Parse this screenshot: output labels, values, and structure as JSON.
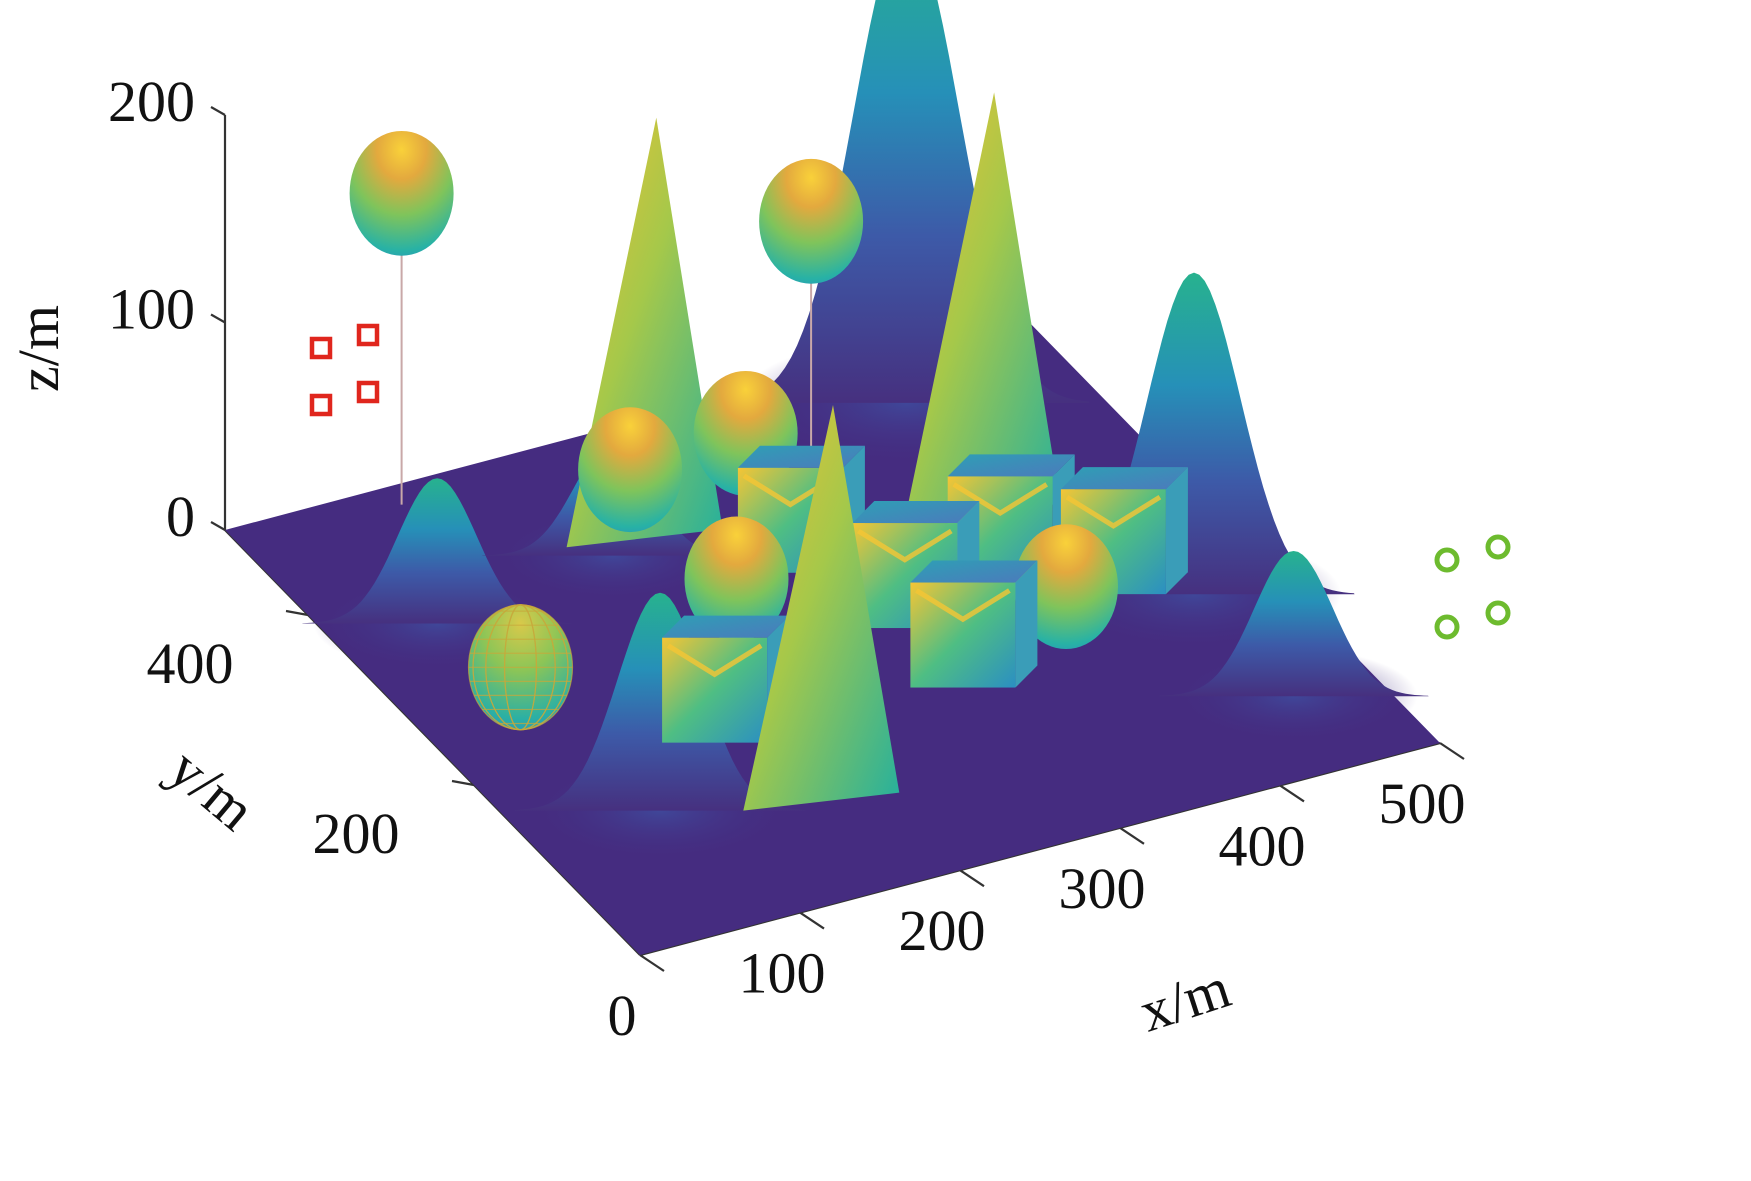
{
  "chart_data": {
    "type": "surface",
    "title": "",
    "xlabel": "x/m",
    "ylabel": "y/m",
    "zlabel": "z/m",
    "xlim": [
      0,
      500
    ],
    "ylim": [
      0,
      500
    ],
    "zlim": [
      0,
      200
    ],
    "x_ticks": [
      {
        "value": 0,
        "label": "0"
      },
      {
        "value": 100,
        "label": "100"
      },
      {
        "value": 200,
        "label": "200"
      },
      {
        "value": 300,
        "label": "300"
      },
      {
        "value": 400,
        "label": "400"
      },
      {
        "value": 500,
        "label": "500"
      }
    ],
    "y_ticks": [
      {
        "value": 200,
        "label": "200"
      },
      {
        "value": 400,
        "label": "400"
      }
    ],
    "z_ticks": [
      {
        "value": 0,
        "label": "0"
      },
      {
        "value": 100,
        "label": "100"
      },
      {
        "value": 200,
        "label": "200"
      }
    ],
    "grid": false,
    "colormap": "parula",
    "colors": {
      "ground": "#452C80",
      "low": "#3E3A8F",
      "mid": "#2AA99A",
      "high": "#F9C62E",
      "start_marker": "#E0261D",
      "goal_marker": "#6DBB2E"
    },
    "terrain_peaks": [
      {
        "x": 60,
        "y": 360,
        "height": 70
      },
      {
        "x": 180,
        "y": 380,
        "height": 55
      },
      {
        "x": 80,
        "y": 130,
        "height": 105
      },
      {
        "x": 400,
        "y": 450,
        "height": 230
      },
      {
        "x": 450,
        "y": 200,
        "height": 155
      },
      {
        "x": 450,
        "y": 80,
        "height": 70
      }
    ],
    "obstacles": {
      "spheres": [
        {
          "x": 100,
          "y": 480,
          "z": 150
        },
        {
          "x": 330,
          "y": 430,
          "z": 110
        },
        {
          "x": 165,
          "y": 330,
          "z": 65
        },
        {
          "x": 245,
          "y": 345,
          "z": 60
        },
        {
          "x": 190,
          "y": 250,
          "z": 40
        },
        {
          "x": 370,
          "y": 200,
          "z": 20
        },
        {
          "x": 55,
          "y": 250,
          "z": 25
        }
      ],
      "cones": [
        {
          "x": 200,
          "y": 380,
          "height": 90
        },
        {
          "x": 380,
          "y": 320,
          "height": 90
        },
        {
          "x": 160,
          "y": 90,
          "height": 85
        }
      ],
      "cubes": [
        {
          "x": 260,
          "y": 320
        },
        {
          "x": 290,
          "y": 240
        },
        {
          "x": 360,
          "y": 260
        },
        {
          "x": 140,
          "y": 180
        },
        {
          "x": 290,
          "y": 170
        },
        {
          "x": 410,
          "y": 220
        }
      ]
    },
    "start_points": {
      "marker": "square",
      "count": 4
    },
    "goal_points": {
      "marker": "circle",
      "count": 4
    }
  }
}
